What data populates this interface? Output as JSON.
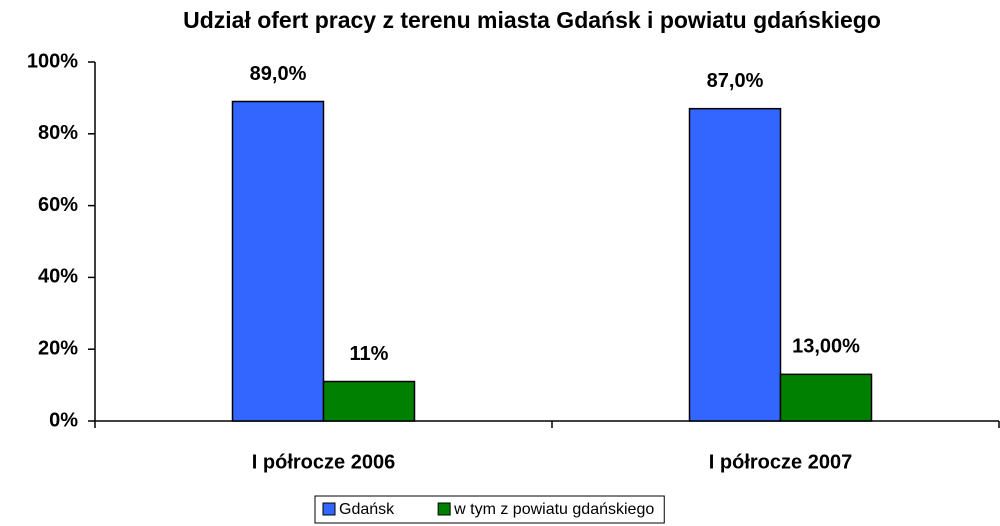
{
  "chart_data": {
    "type": "bar",
    "title": "Udział ofert pracy z terenu miasta Gdańsk i powiatu gdańskiego",
    "categories": [
      "I półrocze 2006",
      "I półrocze 2007"
    ],
    "series": [
      {
        "name": "Gdańsk",
        "color": "#3366ff",
        "values": [
          89,
          87
        ],
        "value_labels": [
          "89,0%",
          "87,0%"
        ]
      },
      {
        "name": "w tym z powiatu gdańskiego",
        "color": "#008000",
        "values": [
          11,
          13
        ],
        "value_labels": [
          "11%",
          "13,00%"
        ]
      }
    ],
    "ylim": [
      0,
      100
    ],
    "yticks": [
      {
        "value": 0,
        "label": "0%"
      },
      {
        "value": 20,
        "label": "20%"
      },
      {
        "value": 40,
        "label": "40%"
      },
      {
        "value": 60,
        "label": "60%"
      },
      {
        "value": 80,
        "label": "80%"
      },
      {
        "value": 100,
        "label": "100%"
      }
    ],
    "grid": false,
    "legend": "bottom"
  }
}
